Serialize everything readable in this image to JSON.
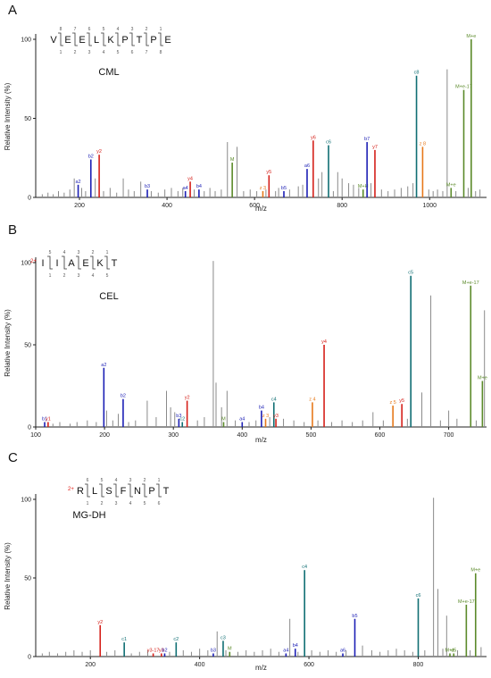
{
  "colors": {
    "a": "#1c1fb5",
    "b": "#1c1fb5",
    "c": "#0f6e73",
    "y": "#d5201a",
    "z": "#e6781a",
    "M": "#5b8a2a",
    "noise": "#8a8a8a",
    "highlight": "#e0201a"
  },
  "chart_data": [
    {
      "type": "spectrum",
      "panel": "A",
      "peptide": [
        "V",
        "E",
        "E",
        "L",
        "K",
        "P",
        "T",
        "P",
        "E"
      ],
      "modified_index": 4,
      "charge": "",
      "modification": "CML",
      "xlabel": "m/z",
      "ylabel": "Relative Intensity (%)",
      "xlim": [
        100,
        1130
      ],
      "ylim": [
        0,
        100
      ],
      "xticks": [
        200,
        400,
        600,
        800,
        1000
      ],
      "yticks": [
        0,
        50,
        100
      ],
      "peaks": [
        {
          "mz": 197,
          "int": 8,
          "ion": "a2",
          "t": "a"
        },
        {
          "mz": 226,
          "int": 24,
          "ion": "b2",
          "t": "b"
        },
        {
          "mz": 245,
          "int": 27,
          "ion": "y2",
          "t": "y"
        },
        {
          "mz": 355,
          "int": 5,
          "ion": "b3",
          "t": "b"
        },
        {
          "mz": 442,
          "int": 4,
          "ion": "a4",
          "t": "a"
        },
        {
          "mz": 453,
          "int": 10,
          "ion": "y4",
          "t": "y"
        },
        {
          "mz": 473,
          "int": 5,
          "ion": "b4",
          "t": "b"
        },
        {
          "mz": 549,
          "int": 22,
          "ion": "M",
          "t": "M"
        },
        {
          "mz": 619,
          "int": 4,
          "ion": "z 3",
          "t": "z"
        },
        {
          "mz": 633,
          "int": 14,
          "ion": "y5",
          "t": "y"
        },
        {
          "mz": 667,
          "int": 4,
          "ion": "b5",
          "t": "b"
        },
        {
          "mz": 720,
          "int": 18,
          "ion": "a6",
          "t": "a"
        },
        {
          "mz": 734,
          "int": 36,
          "ion": "y6",
          "t": "y"
        },
        {
          "mz": 769,
          "int": 33,
          "ion": "c6",
          "t": "c"
        },
        {
          "mz": 848,
          "int": 5,
          "ion": "M+H",
          "t": "M"
        },
        {
          "mz": 857,
          "int": 35,
          "ion": "b7",
          "t": "b"
        },
        {
          "mz": 875,
          "int": 30,
          "ion": "y7",
          "t": "y"
        },
        {
          "mz": 970,
          "int": 77,
          "ion": "c8",
          "t": "c"
        },
        {
          "mz": 984,
          "int": 32,
          "ion": "z 8",
          "t": "z"
        },
        {
          "mz": 1049,
          "int": 6,
          "ion": "M+e",
          "t": "M"
        },
        {
          "mz": 1078,
          "int": 68,
          "ion": "M+e-17",
          "t": "M"
        },
        {
          "mz": 1095,
          "int": 100,
          "ion": "M+e",
          "t": "M"
        }
      ],
      "noise": [
        [
          115,
          2
        ],
        [
          128,
          3
        ],
        [
          140,
          2
        ],
        [
          152,
          4
        ],
        [
          165,
          3
        ],
        [
          178,
          5
        ],
        [
          188,
          12
        ],
        [
          205,
          6
        ],
        [
          214,
          4
        ],
        [
          236,
          12
        ],
        [
          255,
          4
        ],
        [
          270,
          6
        ],
        [
          285,
          3
        ],
        [
          300,
          12
        ],
        [
          312,
          5
        ],
        [
          325,
          4
        ],
        [
          340,
          10
        ],
        [
          364,
          4
        ],
        [
          380,
          3
        ],
        [
          395,
          5
        ],
        [
          410,
          6
        ],
        [
          425,
          4
        ],
        [
          436,
          6
        ],
        [
          462,
          5
        ],
        [
          485,
          4
        ],
        [
          498,
          6
        ],
        [
          510,
          4
        ],
        [
          524,
          5
        ],
        [
          538,
          35
        ],
        [
          560,
          32
        ],
        [
          575,
          4
        ],
        [
          590,
          5
        ],
        [
          605,
          4
        ],
        [
          626,
          5
        ],
        [
          648,
          4
        ],
        [
          655,
          6
        ],
        [
          680,
          5
        ],
        [
          700,
          7
        ],
        [
          710,
          8
        ],
        [
          746,
          12
        ],
        [
          754,
          16
        ],
        [
          780,
          4
        ],
        [
          790,
          16
        ],
        [
          800,
          12
        ],
        [
          815,
          9
        ],
        [
          826,
          8
        ],
        [
          838,
          6
        ],
        [
          866,
          9
        ],
        [
          890,
          5
        ],
        [
          905,
          4
        ],
        [
          920,
          5
        ],
        [
          935,
          6
        ],
        [
          950,
          7
        ],
        [
          962,
          9
        ],
        [
          998,
          5
        ],
        [
          1008,
          4
        ],
        [
          1018,
          5
        ],
        [
          1030,
          4
        ],
        [
          1040,
          81
        ],
        [
          1060,
          4
        ],
        [
          1088,
          6
        ],
        [
          1105,
          4
        ],
        [
          1115,
          5
        ]
      ]
    },
    {
      "type": "spectrum",
      "panel": "B",
      "peptide": [
        "I",
        "I",
        "A",
        "E",
        "K",
        "T"
      ],
      "modified_index": 4,
      "charge": "2+",
      "modification": "CEL",
      "xlabel": "m/z",
      "ylabel": "Relative Intensity (%)",
      "xlim": [
        100,
        755
      ],
      "ylim": [
        0,
        100
      ],
      "xticks": [
        100,
        200,
        300,
        400,
        500,
        600,
        700
      ],
      "yticks": [
        0,
        50,
        100
      ],
      "peaks": [
        {
          "mz": 113,
          "int": 3,
          "ion": "b1",
          "t": "b"
        },
        {
          "mz": 118,
          "int": 3,
          "ion": "y1",
          "t": "y"
        },
        {
          "mz": 199,
          "int": 36,
          "ion": "a2",
          "t": "a"
        },
        {
          "mz": 227,
          "int": 17,
          "ion": "b2",
          "t": "b"
        },
        {
          "mz": 308,
          "int": 5,
          "ion": "b3",
          "t": "b"
        },
        {
          "mz": 313,
          "int": 3,
          "ion": "c2",
          "t": "c"
        },
        {
          "mz": 320,
          "int": 16,
          "ion": "y2",
          "t": "y"
        },
        {
          "mz": 373,
          "int": 3,
          "ion": "M",
          "t": "M"
        },
        {
          "mz": 400,
          "int": 3,
          "ion": "a4",
          "t": "a"
        },
        {
          "mz": 428,
          "int": 10,
          "ion": "b4",
          "t": "b"
        },
        {
          "mz": 434,
          "int": 5,
          "ion": "z 3",
          "t": "z"
        },
        {
          "mz": 446,
          "int": 15,
          "ion": "c4",
          "t": "c"
        },
        {
          "mz": 449,
          "int": 5,
          "ion": "y3",
          "t": "y"
        },
        {
          "mz": 502,
          "int": 15,
          "ion": "z 4",
          "t": "z"
        },
        {
          "mz": 519,
          "int": 50,
          "ion": "y4",
          "t": "y"
        },
        {
          "mz": 619,
          "int": 13,
          "ion": "z 5",
          "t": "z"
        },
        {
          "mz": 632,
          "int": 14,
          "ion": "y5",
          "t": "y"
        },
        {
          "mz": 645,
          "int": 92,
          "ion": "c5",
          "t": "c"
        },
        {
          "mz": 732,
          "int": 86,
          "ion": "M+e-17",
          "t": "M"
        },
        {
          "mz": 749,
          "int": 28,
          "ion": "M+e",
          "t": "M"
        }
      ],
      "noise": [
        [
          125,
          2
        ],
        [
          135,
          3
        ],
        [
          150,
          2
        ],
        [
          160,
          3
        ],
        [
          175,
          4
        ],
        [
          188,
          3
        ],
        [
          203,
          10
        ],
        [
          212,
          4
        ],
        [
          220,
          8
        ],
        [
          235,
          3
        ],
        [
          245,
          4
        ],
        [
          262,
          16
        ],
        [
          275,
          6
        ],
        [
          290,
          22
        ],
        [
          296,
          12
        ],
        [
          302,
          9
        ],
        [
          335,
          4
        ],
        [
          345,
          6
        ],
        [
          358,
          101
        ],
        [
          362,
          27
        ],
        [
          370,
          12
        ],
        [
          378,
          22
        ],
        [
          390,
          4
        ],
        [
          410,
          3
        ],
        [
          420,
          4
        ],
        [
          440,
          6
        ],
        [
          460,
          5
        ],
        [
          475,
          4
        ],
        [
          490,
          3
        ],
        [
          510,
          4
        ],
        [
          530,
          3
        ],
        [
          545,
          4
        ],
        [
          560,
          3
        ],
        [
          575,
          4
        ],
        [
          590,
          9
        ],
        [
          605,
          4
        ],
        [
          640,
          5
        ],
        [
          661,
          21
        ],
        [
          674,
          80
        ],
        [
          688,
          4
        ],
        [
          700,
          10
        ],
        [
          712,
          5
        ],
        [
          740,
          4
        ],
        [
          752,
          71
        ]
      ]
    },
    {
      "type": "spectrum",
      "panel": "C",
      "peptide": [
        "R",
        "L",
        "S",
        "F",
        "N",
        "P",
        "T"
      ],
      "modified_index": 0,
      "charge": "2+",
      "modification": "MG-DH",
      "xlabel": "m/z",
      "ylabel": "Relative Intensity (%)",
      "xlim": [
        100,
        925
      ],
      "ylim": [
        0,
        100
      ],
      "xticks": [
        200,
        400,
        600,
        800
      ],
      "yticks": [
        0,
        50,
        100
      ],
      "peaks": [
        {
          "mz": 218,
          "int": 20,
          "ion": "y2",
          "t": "y"
        },
        {
          "mz": 262,
          "int": 9,
          "ion": "c1",
          "t": "c"
        },
        {
          "mz": 315,
          "int": 2,
          "ion": "y3-17",
          "t": "y"
        },
        {
          "mz": 330,
          "int": 2,
          "ion": "y3",
          "t": "y"
        },
        {
          "mz": 336,
          "int": 2,
          "ion": "b2",
          "t": "b"
        },
        {
          "mz": 357,
          "int": 9,
          "ion": "c2",
          "t": "c"
        },
        {
          "mz": 425,
          "int": 2,
          "ion": "b3",
          "t": "b"
        },
        {
          "mz": 443,
          "int": 10,
          "ion": "c3",
          "t": "c"
        },
        {
          "mz": 455,
          "int": 3,
          "ion": "M",
          "t": "M"
        },
        {
          "mz": 558,
          "int": 2,
          "ion": "a4",
          "t": "a"
        },
        {
          "mz": 575,
          "int": 5,
          "ion": "b4",
          "t": "b"
        },
        {
          "mz": 592,
          "int": 55,
          "ion": "c4",
          "t": "c"
        },
        {
          "mz": 662,
          "int": 2,
          "ion": "a6",
          "t": "a"
        },
        {
          "mz": 684,
          "int": 24,
          "ion": "b5",
          "t": "b"
        },
        {
          "mz": 800,
          "int": 37,
          "ion": "c6",
          "t": "c"
        },
        {
          "mz": 858,
          "int": 2,
          "ion": "M+e",
          "t": "M"
        },
        {
          "mz": 865,
          "int": 2,
          "ion": "d5",
          "t": "M"
        },
        {
          "mz": 888,
          "int": 33,
          "ion": "M+e-17",
          "t": "M"
        },
        {
          "mz": 905,
          "int": 53,
          "ion": "M+e",
          "t": "M"
        }
      ],
      "noise": [
        [
          112,
          2
        ],
        [
          125,
          3
        ],
        [
          140,
          2
        ],
        [
          155,
          3
        ],
        [
          170,
          4
        ],
        [
          185,
          3
        ],
        [
          200,
          4
        ],
        [
          230,
          3
        ],
        [
          245,
          4
        ],
        [
          275,
          2
        ],
        [
          290,
          3
        ],
        [
          305,
          4
        ],
        [
          345,
          3
        ],
        [
          370,
          4
        ],
        [
          385,
          3
        ],
        [
          400,
          5
        ],
        [
          415,
          4
        ],
        [
          432,
          16
        ],
        [
          448,
          4
        ],
        [
          470,
          3
        ],
        [
          485,
          4
        ],
        [
          500,
          3
        ],
        [
          515,
          4
        ],
        [
          530,
          5
        ],
        [
          545,
          3
        ],
        [
          565,
          24
        ],
        [
          580,
          3
        ],
        [
          605,
          4
        ],
        [
          620,
          3
        ],
        [
          635,
          4
        ],
        [
          650,
          3
        ],
        [
          668,
          4
        ],
        [
          698,
          7
        ],
        [
          715,
          4
        ],
        [
          730,
          3
        ],
        [
          745,
          4
        ],
        [
          760,
          5
        ],
        [
          775,
          4
        ],
        [
          790,
          3
        ],
        [
          812,
          4
        ],
        [
          828,
          101
        ],
        [
          836,
          43
        ],
        [
          845,
          5
        ],
        [
          852,
          26
        ],
        [
          872,
          4
        ],
        [
          895,
          4
        ],
        [
          915,
          6
        ]
      ]
    }
  ]
}
